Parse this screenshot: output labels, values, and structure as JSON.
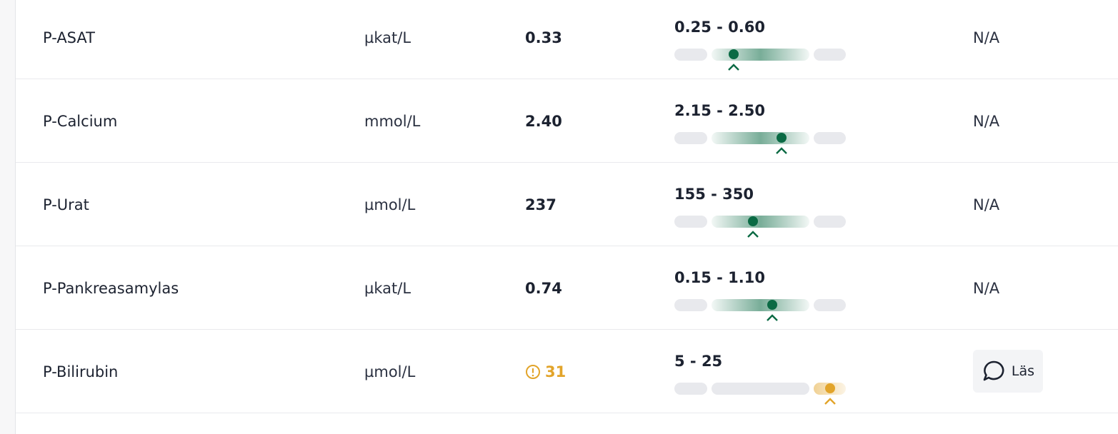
{
  "table": {
    "rows": [
      {
        "name": "P-ASAT",
        "unit": "µkat/L",
        "value": "0.33",
        "range": "0.25 - 0.60",
        "comment": "N/A"
      },
      {
        "name": "P-Calcium",
        "unit": "mmol/L",
        "value": "2.40",
        "range": "2.15 - 2.50",
        "comment": "N/A"
      },
      {
        "name": "P-Urat",
        "unit": "µmol/L",
        "value": "237",
        "range": "155 - 350",
        "comment": "N/A"
      },
      {
        "name": "P-Pankreasamylas",
        "unit": "µkat/L",
        "value": "0.74",
        "range": "0.15 - 1.10",
        "comment": "N/A"
      },
      {
        "name": "P-Bilirubin",
        "unit": "µmol/L",
        "value": "31",
        "range": "5 - 25",
        "button": "Läs"
      }
    ]
  }
}
